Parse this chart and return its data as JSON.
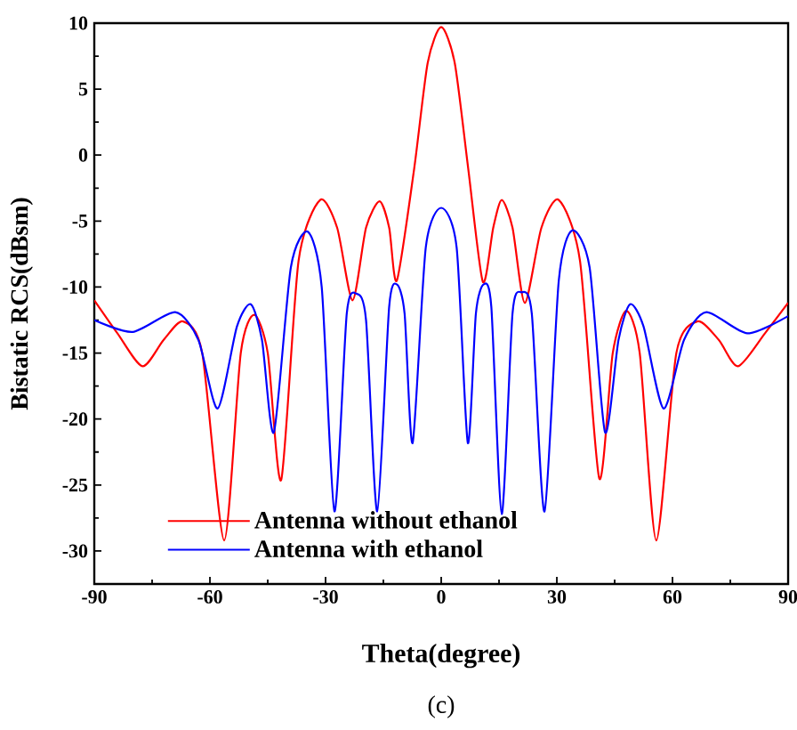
{
  "chart_data": {
    "type": "line",
    "xlabel": "Theta(degree)",
    "ylabel": "Bistatic RCS(dBsm)",
    "annotations": [
      "(c)"
    ],
    "xlim": [
      -90,
      90
    ],
    "ylim": [
      -32.5,
      10
    ],
    "xticks": [
      -90,
      -60,
      -30,
      0,
      30,
      60,
      90
    ],
    "yticks": [
      -30,
      -25,
      -20,
      -15,
      -10,
      -5,
      0,
      5,
      10
    ],
    "legend": "bottom",
    "grid": false,
    "marker": "none",
    "line_style": "solid",
    "series": [
      {
        "name": "Antenna without ethanol",
        "color": "#ff0000",
        "x": [
          -90,
          -84,
          -77.5,
          -72,
          -67,
          -62,
          -56.3,
          -52,
          -48.5,
          -45,
          -41.5,
          -37,
          -31.4,
          -27,
          -23,
          -19.5,
          -16,
          -13.5,
          -11.5,
          -7,
          -3.5,
          0,
          3.5,
          7,
          10.8,
          13.5,
          15.7,
          18.5,
          21.7,
          26,
          30.5,
          36,
          41,
          44.5,
          48,
          51.5,
          55.8,
          61,
          66.5,
          72,
          77,
          84,
          90
        ],
        "values": [
          -11,
          -13.5,
          -16,
          -14,
          -12.6,
          -15,
          -29.2,
          -15,
          -12.1,
          -15,
          -24.6,
          -8,
          -3.4,
          -5.5,
          -11,
          -5.5,
          -3.5,
          -5.5,
          -9.5,
          -1,
          7,
          9.7,
          7,
          -1,
          -9.6,
          -5.5,
          -3.4,
          -5.5,
          -11.2,
          -5.5,
          -3.4,
          -8,
          -24.5,
          -15,
          -11.8,
          -15,
          -29.2,
          -15,
          -12.6,
          -14,
          -16,
          -13.5,
          -11.2
        ]
      },
      {
        "name": "Antenna with ethanol",
        "color": "#0000ff",
        "x": [
          -90,
          -80,
          -69,
          -63,
          -58,
          -53,
          -49.4,
          -46.5,
          -43.4,
          -39,
          -34.6,
          -31,
          -27.7,
          -24.5,
          -22,
          -19.5,
          -16.6,
          -13.5,
          -11.5,
          -9.5,
          -7.4,
          -4,
          0,
          4,
          6.9,
          9,
          11,
          13,
          15.7,
          18.5,
          20.8,
          23.5,
          26.8,
          30.5,
          34,
          38.5,
          42.5,
          46,
          49,
          52.5,
          57.7,
          63,
          68.8,
          79.4,
          90
        ],
        "values": [
          -12.5,
          -13.4,
          -11.9,
          -14,
          -19.2,
          -13,
          -11.3,
          -14,
          -21,
          -8.5,
          -5.8,
          -10,
          -27,
          -12,
          -10.5,
          -12.5,
          -27,
          -11.5,
          -9.8,
          -12,
          -21.8,
          -7,
          -4,
          -7,
          -21.8,
          -12,
          -9.8,
          -11.5,
          -27.2,
          -12,
          -10.4,
          -12,
          -27,
          -9.5,
          -5.7,
          -8.5,
          -21,
          -14,
          -11.3,
          -13,
          -19.2,
          -14,
          -11.9,
          -13.5,
          -12.2
        ]
      }
    ]
  }
}
